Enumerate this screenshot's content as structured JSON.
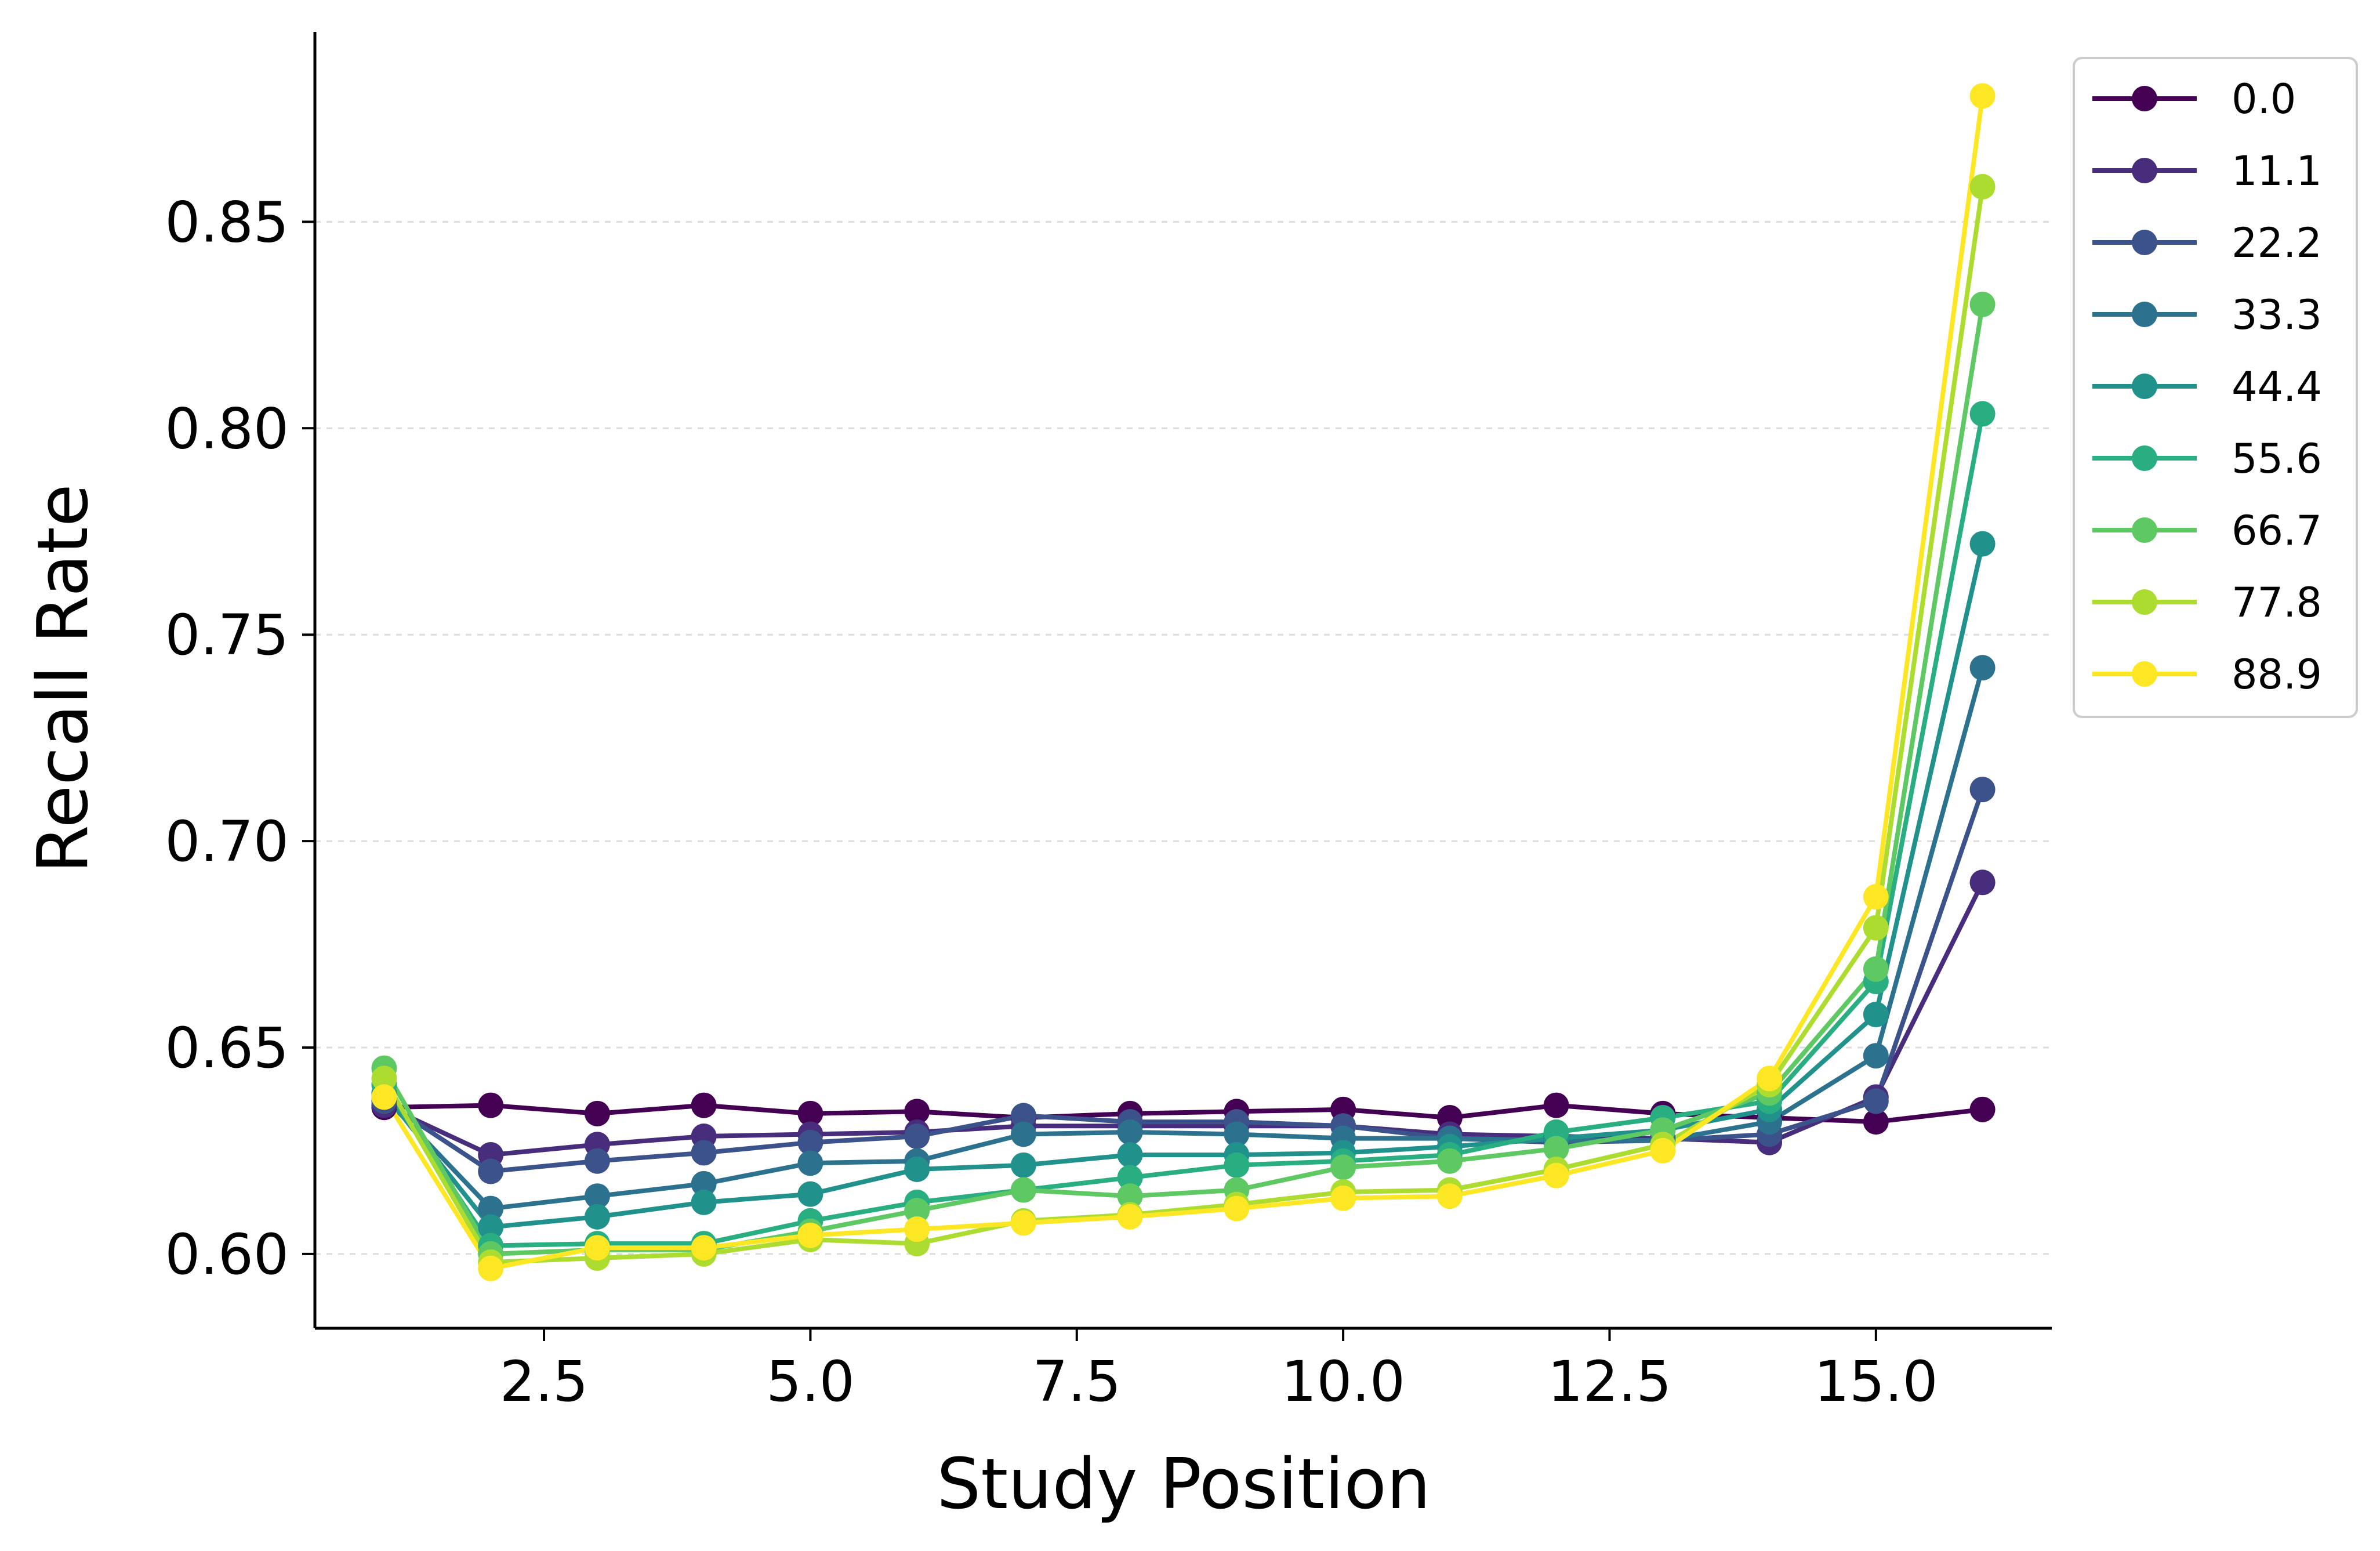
{
  "chart_data": {
    "type": "line",
    "title": "",
    "xlabel": "Study Position",
    "ylabel": "Recall Rate",
    "xlim": [
      0.35,
      16.65
    ],
    "ylim": [
      0.582,
      0.896
    ],
    "xticks": [
      2.5,
      5.0,
      7.5,
      10.0,
      12.5,
      15.0
    ],
    "xtick_labels": [
      "2.5",
      "5.0",
      "7.5",
      "10.0",
      "12.5",
      "15.0"
    ],
    "yticks": [
      0.6,
      0.65,
      0.7,
      0.75,
      0.8,
      0.85
    ],
    "ytick_labels": [
      "0.60",
      "0.65",
      "0.70",
      "0.75",
      "0.80",
      "0.85"
    ],
    "grid": "y-dashed",
    "legend_position": "outside-top-right",
    "x": [
      1,
      2,
      3,
      4,
      5,
      6,
      7,
      8,
      9,
      10,
      11,
      12,
      13,
      14,
      15,
      16
    ],
    "series": [
      {
        "name": "0.0",
        "color": "#440154",
        "values": [
          0.6355,
          0.636,
          0.634,
          0.636,
          0.634,
          0.6345,
          0.633,
          0.634,
          0.6345,
          0.635,
          0.633,
          0.636,
          0.634,
          0.633,
          0.632,
          0.635
        ]
      },
      {
        "name": "11.1",
        "color": "#472d7b",
        "values": [
          0.636,
          0.624,
          0.6265,
          0.6285,
          0.629,
          0.6295,
          0.631,
          0.631,
          0.631,
          0.631,
          0.629,
          0.6285,
          0.628,
          0.627,
          0.638,
          0.69
        ]
      },
      {
        "name": "22.2",
        "color": "#3b528b",
        "values": [
          0.637,
          0.62,
          0.6225,
          0.6245,
          0.627,
          0.6285,
          0.6335,
          0.632,
          0.632,
          0.631,
          0.628,
          0.627,
          0.6275,
          0.629,
          0.637,
          0.7125
        ]
      },
      {
        "name": "33.3",
        "color": "#2c728e",
        "values": [
          0.638,
          0.611,
          0.614,
          0.617,
          0.622,
          0.6225,
          0.629,
          0.6295,
          0.629,
          0.628,
          0.628,
          0.6275,
          0.6275,
          0.632,
          0.648,
          0.742
        ]
      },
      {
        "name": "44.4",
        "color": "#21918c",
        "values": [
          0.639,
          0.6065,
          0.609,
          0.6125,
          0.6145,
          0.6205,
          0.6215,
          0.624,
          0.624,
          0.6245,
          0.626,
          0.628,
          0.63,
          0.635,
          0.658,
          0.772
        ]
      },
      {
        "name": "55.6",
        "color": "#28ae80",
        "values": [
          0.641,
          0.602,
          0.6025,
          0.6025,
          0.608,
          0.6125,
          0.6155,
          0.6185,
          0.6215,
          0.6225,
          0.624,
          0.6295,
          0.633,
          0.637,
          0.666,
          0.8035
        ]
      },
      {
        "name": "66.7",
        "color": "#5ec962",
        "values": [
          0.645,
          0.6,
          0.601,
          0.601,
          0.6055,
          0.6105,
          0.6155,
          0.614,
          0.6155,
          0.621,
          0.6225,
          0.6255,
          0.63,
          0.639,
          0.669,
          0.83
        ]
      },
      {
        "name": "77.8",
        "color": "#addc30",
        "values": [
          0.6425,
          0.598,
          0.599,
          0.6,
          0.6035,
          0.6025,
          0.608,
          0.6095,
          0.612,
          0.615,
          0.6155,
          0.6205,
          0.6265,
          0.641,
          0.679,
          0.8585
        ]
      },
      {
        "name": "88.9",
        "color": "#fde725",
        "values": [
          0.638,
          0.5965,
          0.6015,
          0.6015,
          0.6045,
          0.606,
          0.6075,
          0.609,
          0.611,
          0.6135,
          0.614,
          0.619,
          0.625,
          0.6425,
          0.6865,
          0.8805
        ]
      }
    ]
  }
}
